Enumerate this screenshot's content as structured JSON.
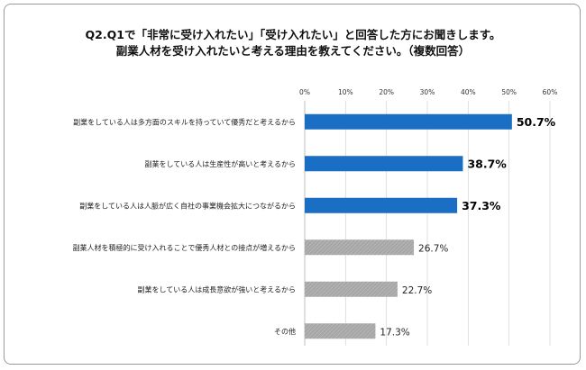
{
  "chart_data": {
    "type": "bar",
    "orientation": "horizontal",
    "title_lines": [
      "Q2.Q1で「非常に受け入れたい」「受け入れたい」と回答した方にお聞きします。",
      "副業人材を受け入れたいと考える理由を教えてください。（複数回答）"
    ],
    "categories": [
      "副業をしている人は多方面のスキルを持っていて優秀だと考えるから",
      "副業をしている人は生産性が高いと考えるから",
      "副業をしている人は人脈が広く自社の事業機会拡大につながるから",
      "副業人材を積極的に受け入れることで優秀人材との接点が増えるから",
      "副業をしている人は成長意欲が強いと考えるから",
      "その他"
    ],
    "values": [
      50.7,
      38.7,
      37.3,
      26.7,
      22.7,
      17.3
    ],
    "value_labels": [
      "50.7%",
      "38.7%",
      "37.3%",
      "26.7%",
      "22.7%",
      "17.3%"
    ],
    "highlighted": [
      true,
      true,
      true,
      false,
      false,
      false
    ],
    "xlim": [
      0,
      60
    ],
    "xticks": [
      "0%",
      "10%",
      "20%",
      "30%",
      "40%",
      "50%",
      "60%"
    ],
    "colors": {
      "highlight": "#1a6fc4",
      "normal": "#a6a6a6"
    }
  }
}
